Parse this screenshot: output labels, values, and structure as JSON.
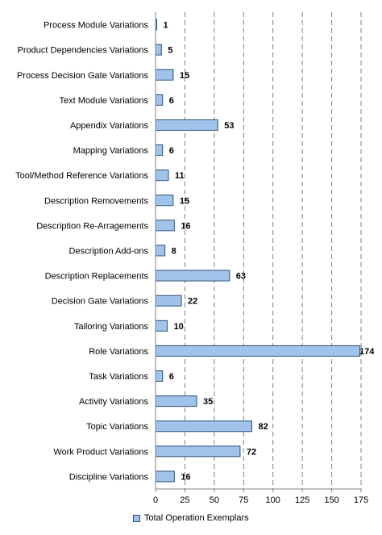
{
  "chart_data": {
    "type": "bar",
    "orientation": "horizontal",
    "categories": [
      "Process Module Variations",
      "Product Dependencies Variations",
      "Process Decision Gate Variations",
      "Text Module Variations",
      "Appendix Variations",
      "Mapping Variations",
      "Tool/Method Reference Variations",
      "Description Removements",
      "Description Re-Arragements",
      "Description Add-ons",
      "Description Replacements",
      "Decision Gate Variations",
      "Tailoring Variations",
      "Role Variations",
      "Task Variations",
      "Activity Variations",
      "Topic Variations",
      "Work Product Variations",
      "Discipline Variations"
    ],
    "series": [
      {
        "name": "Total Operation Exemplars",
        "values": [
          1,
          5,
          15,
          6,
          53,
          6,
          11,
          15,
          16,
          8,
          63,
          22,
          10,
          174,
          6,
          35,
          82,
          72,
          16
        ]
      }
    ],
    "xlim": [
      0,
      175
    ],
    "xticks": [
      "0",
      "25",
      "50",
      "75",
      "100",
      "125",
      "150",
      "175"
    ],
    "grid": "vertical dashed",
    "legend": "bottom",
    "colors": {
      "bar_fill": "#9fc3ea",
      "bar_stroke": "#2b4f7a",
      "grid": "#808080"
    }
  }
}
